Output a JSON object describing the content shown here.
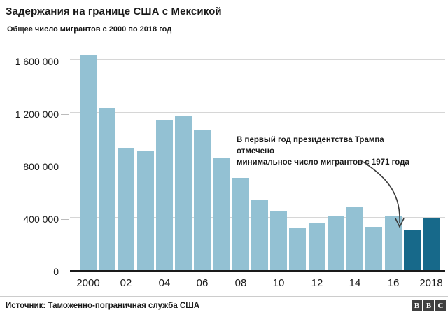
{
  "header": {
    "title": "Задержания на границе США с Мексикой",
    "subtitle": "Общее число мигрантов с 2000 по 2018 год"
  },
  "annotation": {
    "line1": "В первый год президентства Трампа отмечено",
    "line2": "минимальное число мигрантов с 1971 года"
  },
  "footer": {
    "source": "Источник: Таможенно-пограничная служба США",
    "logo_letters": [
      "B",
      "B",
      "C"
    ]
  },
  "colors": {
    "bar_light": "#93C1D3",
    "bar_dark": "#17698A",
    "gridline": "#D6D6D6",
    "tick": "#BBBBBB",
    "axis_line": "#1A1A1A",
    "arrow": "#3A3A3A"
  },
  "chart_data": {
    "type": "bar",
    "title": "Задержания на границе США с Мексикой",
    "subtitle": "Общее число мигрантов с 2000 по 2018 год",
    "categories": [
      "2000",
      "2001",
      "2002",
      "2003",
      "2004",
      "2005",
      "2006",
      "2007",
      "2008",
      "2009",
      "2010",
      "2011",
      "2012",
      "2013",
      "2014",
      "2015",
      "2016",
      "2017",
      "2018"
    ],
    "values": [
      1643679,
      1235718,
      929809,
      905065,
      1139282,
      1171396,
      1071972,
      858638,
      705005,
      540865,
      447731,
      327577,
      356873,
      414397,
      479371,
      331333,
      408870,
      303916,
      396579
    ],
    "highlighted_years": [
      "2017",
      "2018"
    ],
    "ylim": [
      0,
      1600000
    ],
    "grid": "horizontal",
    "legend": "none",
    "yticks": [
      {
        "value": 0,
        "label": "0"
      },
      {
        "value": 400000,
        "label": "400 000"
      },
      {
        "value": 800000,
        "label": "800 000"
      },
      {
        "value": 1200000,
        "label": "1 200 000"
      },
      {
        "value": 1600000,
        "label": "1 600 000"
      }
    ],
    "xticks": [
      {
        "index": 0,
        "label": "2000"
      },
      {
        "index": 2,
        "label": "02"
      },
      {
        "index": 4,
        "label": "04"
      },
      {
        "index": 6,
        "label": "06"
      },
      {
        "index": 8,
        "label": "08"
      },
      {
        "index": 10,
        "label": "10"
      },
      {
        "index": 12,
        "label": "12"
      },
      {
        "index": 14,
        "label": "14"
      },
      {
        "index": 16,
        "label": "16"
      },
      {
        "index": 18,
        "label": "2018"
      }
    ]
  }
}
